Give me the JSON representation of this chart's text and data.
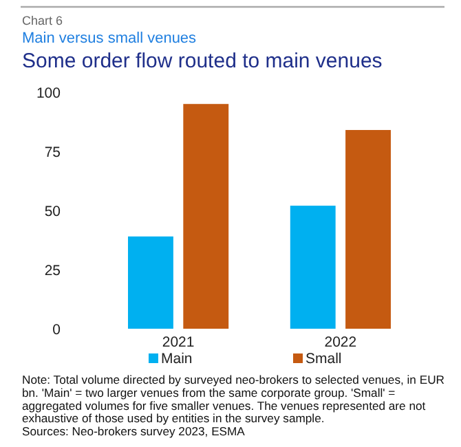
{
  "chart_data": {
    "type": "bar",
    "title": "Some order flow routed to main venues",
    "subtitle": "Main versus small venues",
    "annotations": [
      "Chart  6",
      "Note: Total volume directed by surveyed neo-brokers to selected venues, in EUR bn. 'Main' = two larger venues from the same corporate group. 'Small' = aggregated volumes for five smaller venues. The venues represented are not exhaustive of those used by entities in the survey sample.",
      "Sources: Neo-brokers survey 2023, ESMA"
    ],
    "categories": [
      "2021",
      "2022"
    ],
    "series": [
      {
        "name": "Main",
        "color": "#00b0f0",
        "values": [
          39,
          52
        ]
      },
      {
        "name": "Small",
        "color": "#c55a11",
        "values": [
          95,
          84
        ]
      }
    ],
    "ylim": [
      0,
      100
    ],
    "yticks": [
      0,
      25,
      50,
      75,
      100
    ],
    "legend": "bottom"
  }
}
